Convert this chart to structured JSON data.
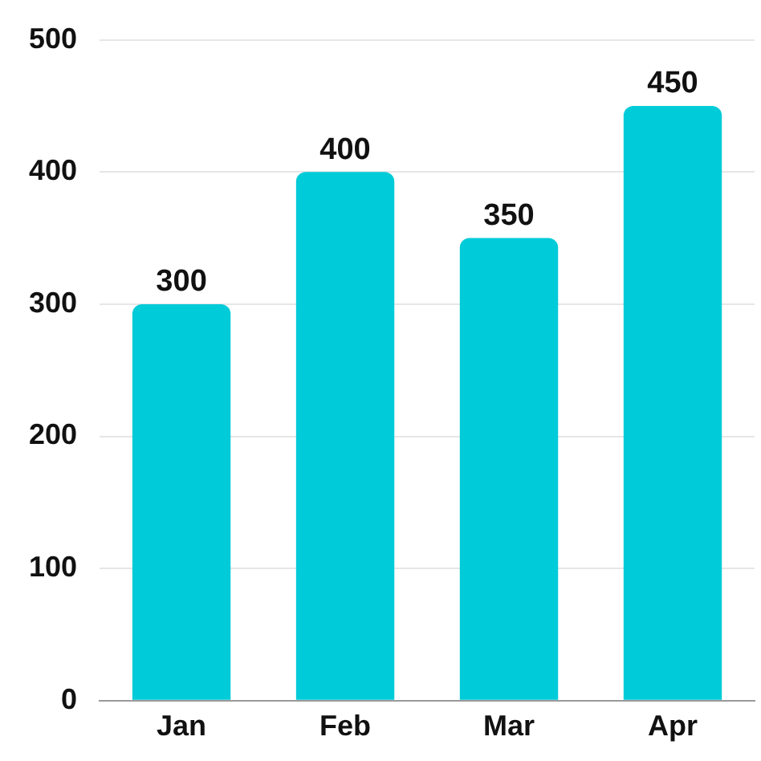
{
  "chart_data": {
    "type": "bar",
    "categories": [
      "Jan",
      "Feb",
      "Mar",
      "Apr"
    ],
    "values": [
      300,
      400,
      350,
      450
    ],
    "color": "#00cbd8",
    "ylim": [
      0,
      500
    ],
    "yticks": [
      0,
      100,
      200,
      300,
      400,
      500
    ],
    "grid": "y",
    "data_labels": true,
    "legend": false
  }
}
